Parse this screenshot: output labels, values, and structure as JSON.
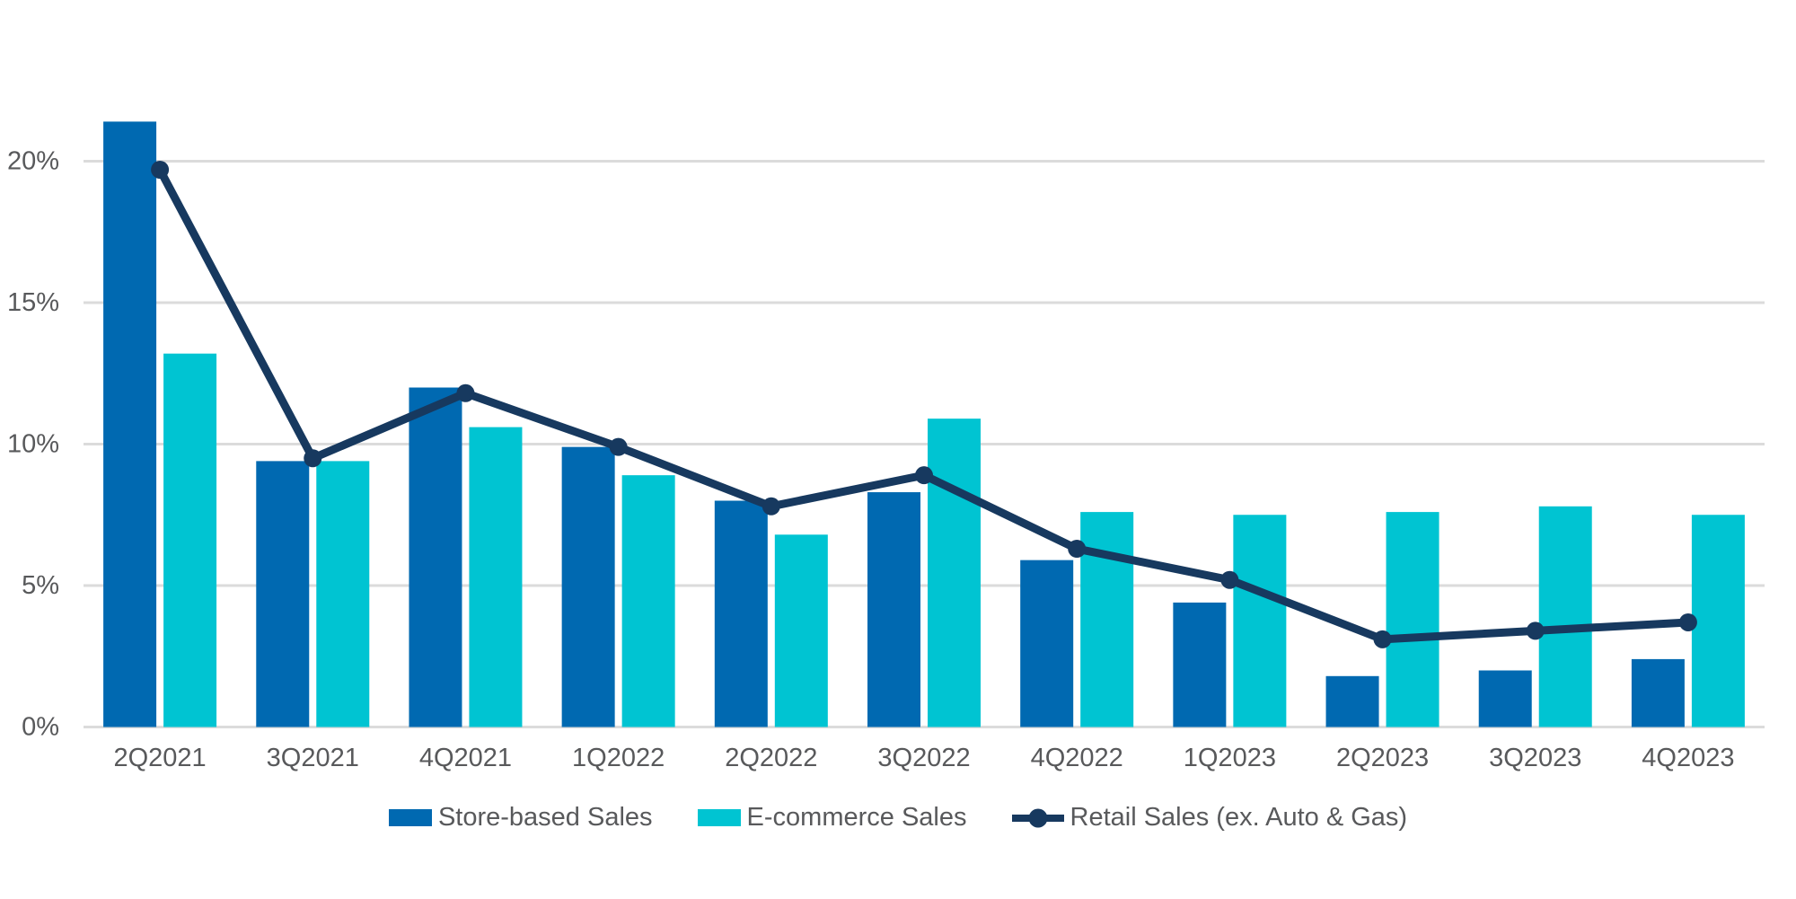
{
  "chart_data": {
    "type": "bar",
    "subtype": "grouped-bar-with-line-overlay",
    "title": "",
    "xlabel": "",
    "ylabel": "",
    "unit": "%",
    "categories": [
      "2Q2021",
      "3Q2021",
      "4Q2021",
      "1Q2022",
      "2Q2022",
      "3Q2022",
      "4Q2022",
      "1Q2023",
      "2Q2023",
      "3Q2023",
      "4Q2023"
    ],
    "series": [
      {
        "name": "Store-based Sales",
        "type": "bar",
        "color": "#0069B1",
        "values": [
          21.4,
          9.4,
          12.0,
          9.9,
          8.0,
          8.3,
          5.9,
          4.4,
          1.8,
          2.0,
          2.4
        ]
      },
      {
        "name": "E-commerce Sales",
        "type": "bar",
        "color": "#00C4D2",
        "values": [
          13.2,
          9.4,
          10.6,
          8.9,
          6.8,
          10.9,
          7.6,
          7.5,
          7.6,
          7.8,
          7.5
        ]
      },
      {
        "name": "Retail Sales (ex. Auto & Gas)",
        "type": "line",
        "color": "#17395F",
        "values": [
          19.7,
          9.5,
          11.8,
          9.9,
          7.8,
          8.9,
          6.3,
          5.2,
          3.1,
          3.4,
          3.7
        ]
      }
    ],
    "yticks": [
      0,
      5,
      10,
      15,
      20
    ],
    "ytick_labels": [
      "0%",
      "5%",
      "10%",
      "15%",
      "20%"
    ],
    "ylim": [
      0,
      22.5
    ],
    "grid": true,
    "grid_color": "#DBDBDB",
    "axis_text_color": "#58595B",
    "background_color": "#FFFFFF",
    "legend_position": "bottom"
  }
}
